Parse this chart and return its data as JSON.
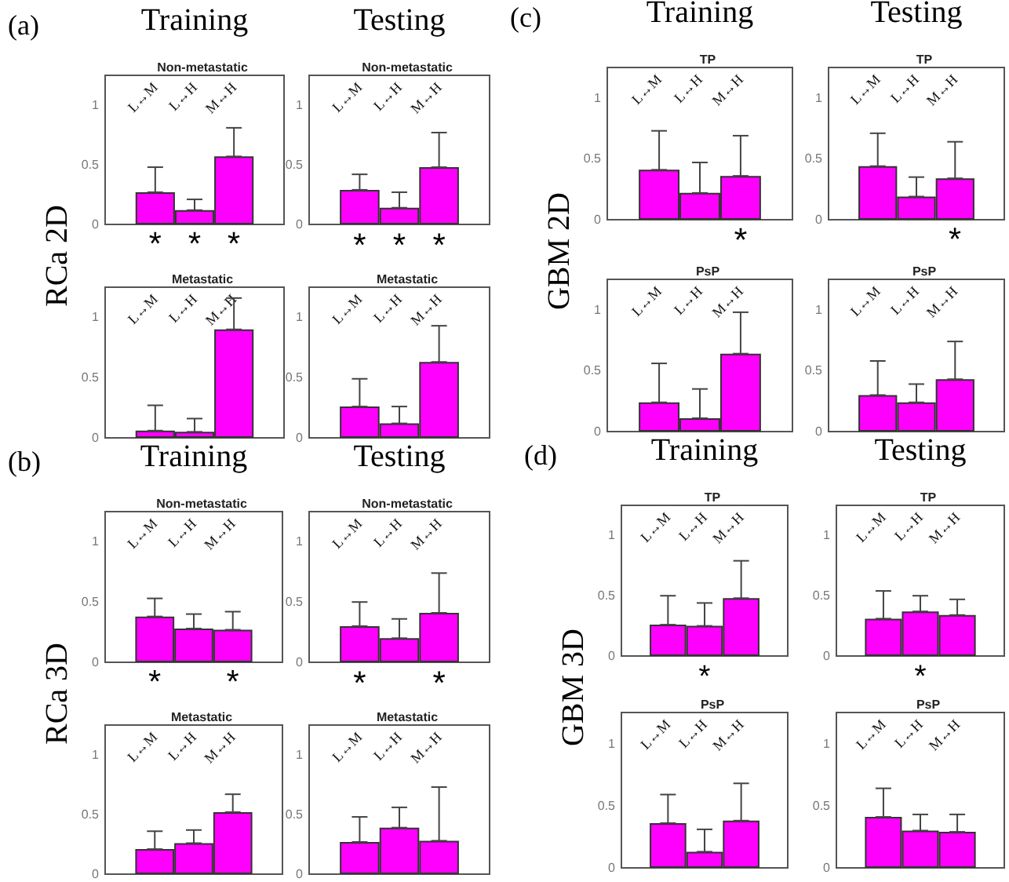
{
  "chart_data": [
    {
      "type": "bar",
      "title": "Non-metastatic",
      "categories": [
        "L↔M",
        "L↔H",
        "M↔H"
      ],
      "series": [
        {
          "color": "#ff00ff",
          "values": [
            0.27,
            0.12,
            0.57
          ],
          "errors": [
            [
              0.27,
              0.48
            ],
            [
              0.12,
              0.21
            ],
            [
              0.57,
              0.81
            ]
          ]
        }
      ],
      "ylim": [
        0,
        1.25
      ],
      "yticks": [
        0,
        0.5,
        1
      ],
      "annotations": [
        "(a)",
        "Training",
        "RCa 2D",
        "* * *"
      ]
    },
    {
      "type": "bar",
      "title": "Non-metastatic",
      "categories": [
        "L↔M",
        "L↔H",
        "M↔H"
      ],
      "series": [
        {
          "color": "#ff00ff",
          "values": [
            0.29,
            0.14,
            0.48
          ],
          "errors": [
            [
              0.29,
              0.42
            ],
            [
              0.14,
              0.27
            ],
            [
              0.48,
              0.77
            ]
          ]
        }
      ],
      "ylim": [
        0,
        1.25
      ],
      "yticks": [
        0,
        0.5,
        1
      ],
      "annotations": [
        "Testing",
        "* * *"
      ]
    },
    {
      "type": "bar",
      "title": "Metastatic",
      "categories": [
        "L↔M",
        "L↔H",
        "M↔H"
      ],
      "series": [
        {
          "color": "#ff00ff",
          "values": [
            0.06,
            0.05,
            0.9
          ],
          "errors": [
            [
              0.06,
              0.27
            ],
            [
              0.05,
              0.16
            ],
            [
              0.9,
              1.16
            ]
          ]
        }
      ],
      "ylim": [
        0,
        1.25
      ],
      "yticks": [
        0,
        0.5,
        1
      ]
    },
    {
      "type": "bar",
      "title": "Metastatic",
      "categories": [
        "L↔M",
        "L↔H",
        "M↔H"
      ],
      "series": [
        {
          "color": "#ff00ff",
          "values": [
            0.26,
            0.12,
            0.63
          ],
          "errors": [
            [
              0.26,
              0.49
            ],
            [
              0.12,
              0.26
            ],
            [
              0.63,
              0.93
            ]
          ]
        }
      ],
      "ylim": [
        0,
        1.25
      ],
      "yticks": [
        0,
        0.5,
        1
      ]
    },
    {
      "type": "bar",
      "title": "Non-metastatic",
      "categories": [
        "L↔M",
        "L↔H",
        "M↔H"
      ],
      "series": [
        {
          "color": "#ff00ff",
          "values": [
            0.38,
            0.28,
            0.27
          ],
          "errors": [
            [
              0.38,
              0.53
            ],
            [
              0.28,
              0.4
            ],
            [
              0.27,
              0.42
            ]
          ]
        }
      ],
      "ylim": [
        0,
        1.25
      ],
      "yticks": [
        0,
        0.5,
        1
      ],
      "annotations": [
        "(b)",
        "Training",
        "RCa 3D",
        "*   *"
      ]
    },
    {
      "type": "bar",
      "title": "Non-metastatic",
      "categories": [
        "L↔M",
        "L↔H",
        "M↔H"
      ],
      "series": [
        {
          "color": "#ff00ff",
          "values": [
            0.3,
            0.2,
            0.41
          ],
          "errors": [
            [
              0.3,
              0.5
            ],
            [
              0.2,
              0.36
            ],
            [
              0.41,
              0.74
            ]
          ]
        }
      ],
      "ylim": [
        0,
        1.25
      ],
      "yticks": [
        0,
        0.5,
        1
      ],
      "annotations": [
        "Testing",
        "*   *"
      ]
    },
    {
      "type": "bar",
      "title": "Metastatic",
      "categories": [
        "L↔M",
        "L↔H",
        "M↔H"
      ],
      "series": [
        {
          "color": "#ff00ff",
          "values": [
            0.21,
            0.26,
            0.52
          ],
          "errors": [
            [
              0.21,
              0.36
            ],
            [
              0.26,
              0.37
            ],
            [
              0.52,
              0.67
            ]
          ]
        }
      ],
      "ylim": [
        0,
        1.25
      ],
      "yticks": [
        0,
        0.5,
        1
      ]
    },
    {
      "type": "bar",
      "title": "Metastatic",
      "categories": [
        "L↔M",
        "L↔H",
        "M↔H"
      ],
      "series": [
        {
          "color": "#ff00ff",
          "values": [
            0.27,
            0.39,
            0.28
          ],
          "errors": [
            [
              0.27,
              0.48
            ],
            [
              0.39,
              0.56
            ],
            [
              0.28,
              0.73
            ]
          ]
        }
      ],
      "ylim": [
        0,
        1.25
      ],
      "yticks": [
        0,
        0.5,
        1
      ]
    },
    {
      "type": "bar",
      "title": "TP",
      "categories": [
        "L↔M",
        "L↔H",
        "M↔H"
      ],
      "series": [
        {
          "color": "#ff00ff",
          "values": [
            0.41,
            0.22,
            0.36
          ],
          "errors": [
            [
              0.41,
              0.73
            ],
            [
              0.22,
              0.47
            ],
            [
              0.36,
              0.69
            ]
          ]
        }
      ],
      "ylim": [
        0,
        1.25
      ],
      "yticks": [
        0,
        0.5,
        1
      ],
      "annotations": [
        "(c)",
        "Training",
        "GBM 2D",
        "    *"
      ]
    },
    {
      "type": "bar",
      "title": "TP",
      "categories": [
        "L↔M",
        "L↔H",
        "M↔H"
      ],
      "series": [
        {
          "color": "#ff00ff",
          "values": [
            0.44,
            0.19,
            0.34
          ],
          "errors": [
            [
              0.44,
              0.71
            ],
            [
              0.19,
              0.35
            ],
            [
              0.34,
              0.64
            ]
          ]
        }
      ],
      "ylim": [
        0,
        1.25
      ],
      "yticks": [
        0,
        0.5,
        1
      ],
      "annotations": [
        "Testing",
        "    *"
      ]
    },
    {
      "type": "bar",
      "title": "PsP",
      "categories": [
        "L↔M",
        "L↔H",
        "M↔H"
      ],
      "series": [
        {
          "color": "#ff00ff",
          "values": [
            0.24,
            0.11,
            0.64
          ],
          "errors": [
            [
              0.24,
              0.56
            ],
            [
              0.11,
              0.35
            ],
            [
              0.64,
              0.98
            ]
          ]
        }
      ],
      "ylim": [
        0,
        1.25
      ],
      "yticks": [
        0,
        0.5,
        1
      ]
    },
    {
      "type": "bar",
      "title": "PsP",
      "categories": [
        "L↔M",
        "L↔H",
        "M↔H"
      ],
      "series": [
        {
          "color": "#ff00ff",
          "values": [
            0.3,
            0.24,
            0.43
          ],
          "errors": [
            [
              0.3,
              0.58
            ],
            [
              0.24,
              0.39
            ],
            [
              0.43,
              0.74
            ]
          ]
        }
      ],
      "ylim": [
        0,
        1.25
      ],
      "yticks": [
        0,
        0.5,
        1
      ]
    },
    {
      "type": "bar",
      "title": "TP",
      "categories": [
        "L↔M",
        "L↔H",
        "M↔H"
      ],
      "series": [
        {
          "color": "#ff00ff",
          "values": [
            0.26,
            0.25,
            0.48
          ],
          "errors": [
            [
              0.26,
              0.5
            ],
            [
              0.25,
              0.44
            ],
            [
              0.48,
              0.79
            ]
          ]
        }
      ],
      "ylim": [
        0,
        1.25
      ],
      "yticks": [
        0,
        0.5,
        1
      ],
      "annotations": [
        "(d)",
        "Training",
        "GBM 3D",
        "  *"
      ]
    },
    {
      "type": "bar",
      "title": "TP",
      "categories": [
        "L↔M",
        "L↔H",
        "M↔H"
      ],
      "series": [
        {
          "color": "#ff00ff",
          "values": [
            0.31,
            0.37,
            0.34
          ],
          "errors": [
            [
              0.31,
              0.54
            ],
            [
              0.37,
              0.5
            ],
            [
              0.34,
              0.47
            ]
          ]
        }
      ],
      "ylim": [
        0,
        1.25
      ],
      "yticks": [
        0,
        0.5,
        1
      ],
      "annotations": [
        "Testing",
        "  *"
      ]
    },
    {
      "type": "bar",
      "title": "PsP",
      "categories": [
        "L↔M",
        "L↔H",
        "M↔H"
      ],
      "series": [
        {
          "color": "#ff00ff",
          "values": [
            0.36,
            0.13,
            0.38
          ],
          "errors": [
            [
              0.36,
              0.59
            ],
            [
              0.13,
              0.31
            ],
            [
              0.38,
              0.68
            ]
          ]
        }
      ],
      "ylim": [
        0,
        1.25
      ],
      "yticks": [
        0,
        0.5,
        1
      ]
    },
    {
      "type": "bar",
      "title": "PsP",
      "categories": [
        "L↔M",
        "L↔H",
        "M↔H"
      ],
      "series": [
        {
          "color": "#ff00ff",
          "values": [
            0.41,
            0.3,
            0.29
          ],
          "errors": [
            [
              0.41,
              0.64
            ],
            [
              0.3,
              0.43
            ],
            [
              0.29,
              0.43
            ]
          ]
        }
      ],
      "ylim": [
        0,
        1.25
      ],
      "yticks": [
        0,
        0.5,
        1
      ]
    }
  ]
}
